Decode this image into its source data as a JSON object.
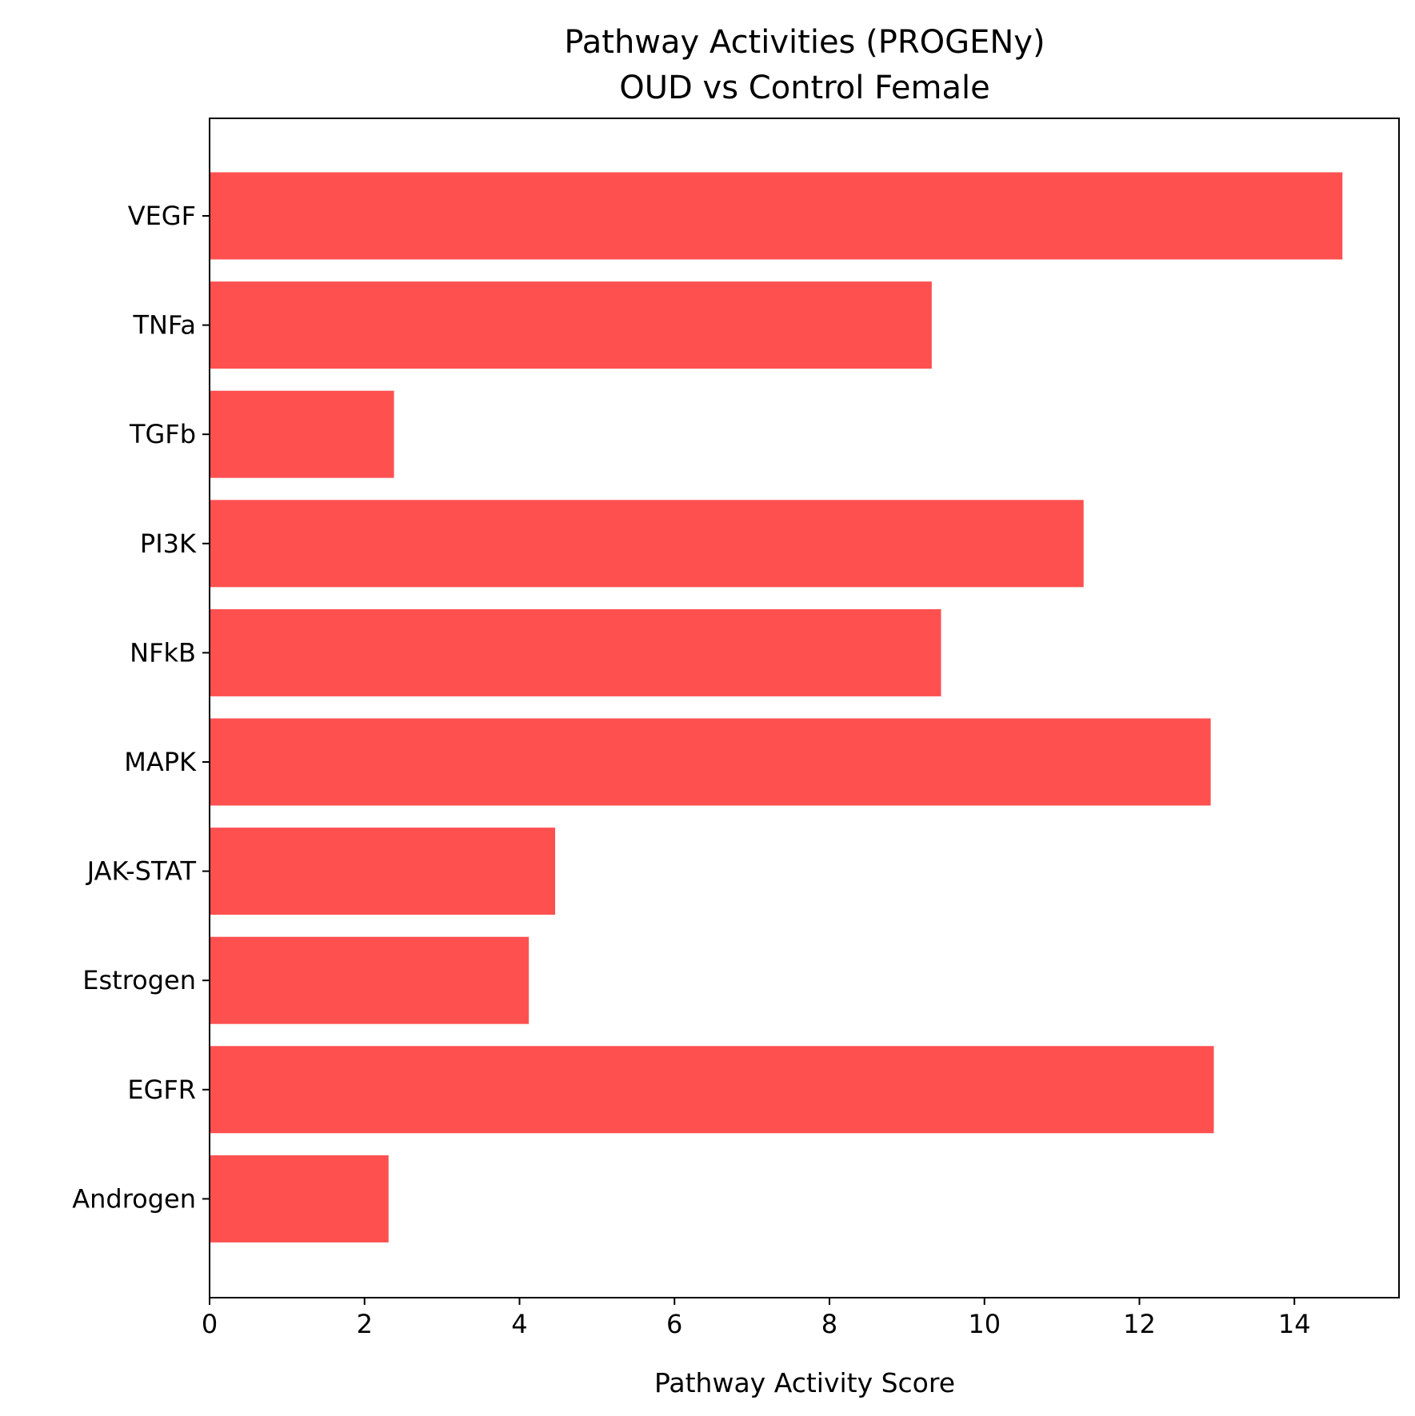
{
  "chart_data": {
    "type": "bar",
    "orientation": "horizontal",
    "title": "Pathway Activities (PROGENy)",
    "subtitle": "OUD vs Control Female",
    "xlabel": "Pathway Activity Score",
    "ylabel": "",
    "categories": [
      "VEGF",
      "TNFa",
      "TGFb",
      "PI3K",
      "NFkB",
      "MAPK",
      "JAK-STAT",
      "Estrogen",
      "EGFR",
      "Androgen"
    ],
    "values": [
      14.62,
      9.32,
      2.38,
      11.28,
      9.44,
      12.92,
      4.46,
      4.12,
      12.96,
      2.31
    ],
    "xlim": [
      0,
      15.35
    ],
    "xticks": [
      0,
      2,
      4,
      6,
      8,
      10,
      12,
      14
    ],
    "grid": false,
    "legend": "none",
    "bar_color": "#ff5050"
  }
}
